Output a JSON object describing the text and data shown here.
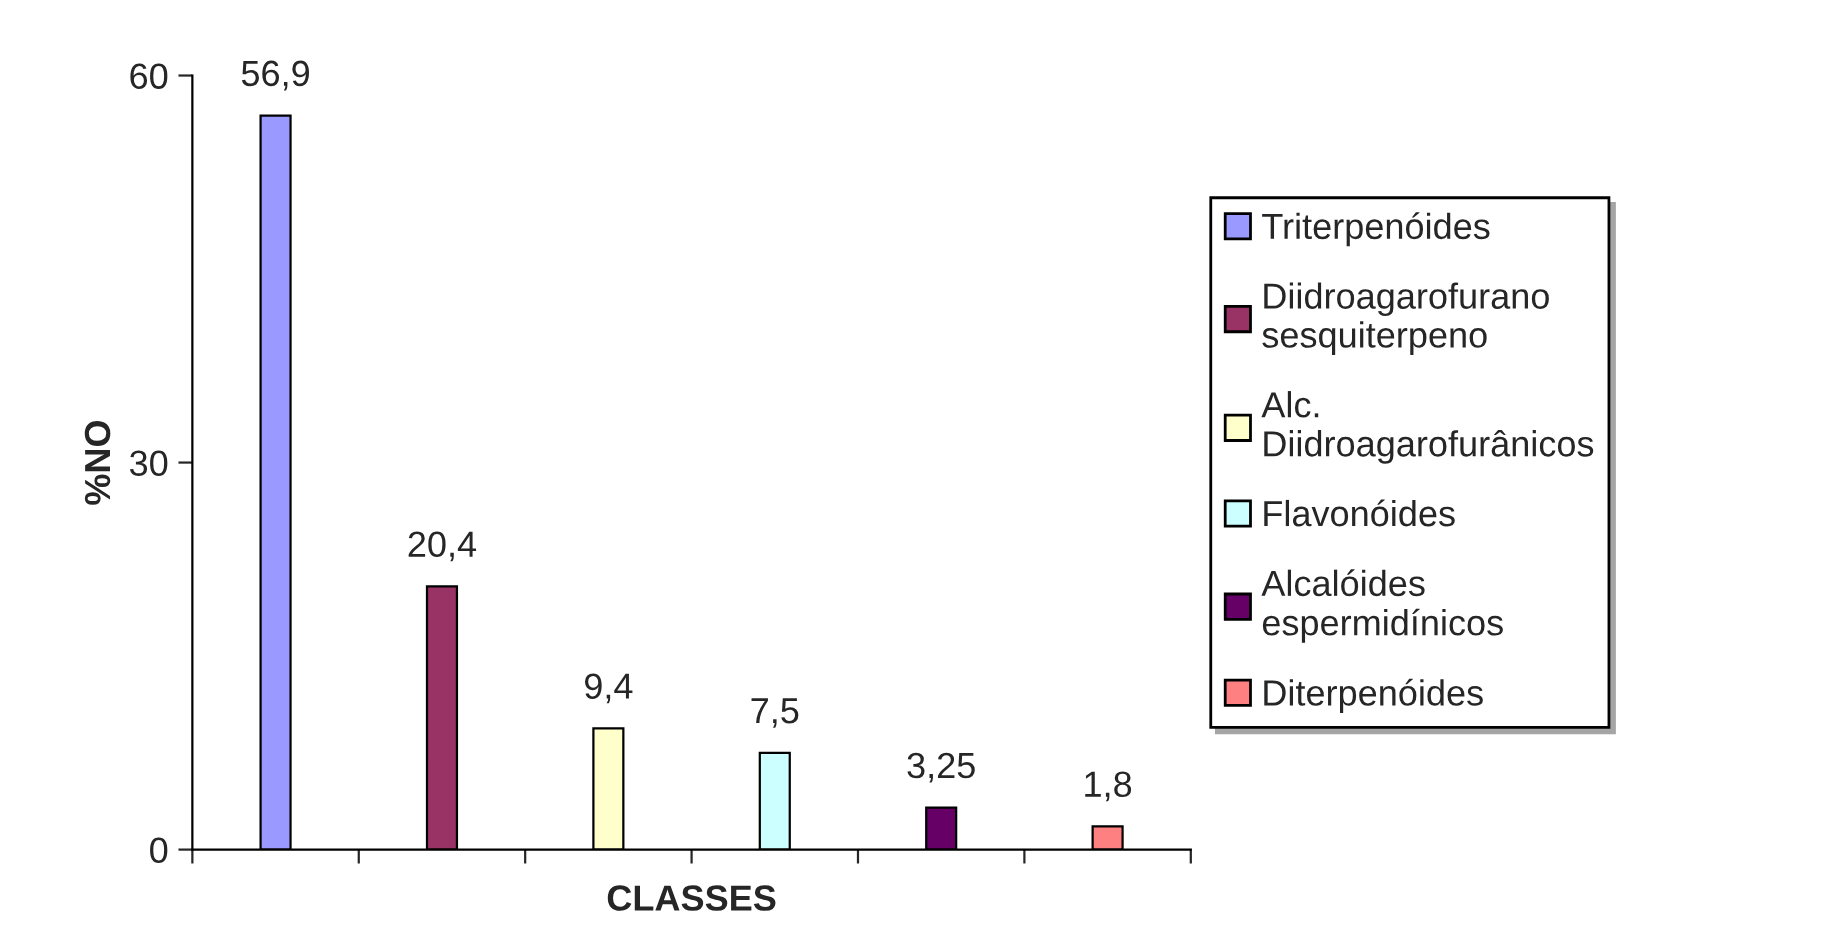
{
  "chart_data": {
    "type": "bar",
    "xlabel": "CLASSES",
    "ylabel": "%NO",
    "categories": [
      null,
      null,
      null,
      null,
      null,
      null
    ],
    "series": [
      {
        "name": "Triterpenóides",
        "color": "#9999ff",
        "values": [
          56.9,
          null,
          null,
          null,
          null,
          null
        ]
      },
      {
        "name": "Diidroagarofurano\nsesquiterpeno",
        "color": "#993366",
        "values": [
          null,
          20.4,
          null,
          null,
          null,
          null
        ]
      },
      {
        "name": "Alc.\nDiidroagarofurânicos",
        "color": "#ffffcc",
        "values": [
          null,
          null,
          9.4,
          null,
          null,
          null
        ]
      },
      {
        "name": "Flavonóides",
        "color": "#ccffff",
        "values": [
          null,
          null,
          null,
          7.5,
          null,
          null
        ]
      },
      {
        "name": "Alcalóides\nespermidínicos",
        "color": "#660066",
        "values": [
          null,
          null,
          null,
          null,
          3.25,
          null
        ]
      },
      {
        "name": "Diterpenóides",
        "color": "#ff8080",
        "values": [
          null,
          null,
          null,
          null,
          null,
          1.8
        ]
      }
    ],
    "value_labels": [
      "56,9",
      "20,4",
      "9,4",
      "7,5",
      "3,25",
      "1,8"
    ],
    "ylim": [
      0,
      60
    ],
    "yticks": [
      0,
      30,
      60
    ],
    "grid": false,
    "legend": "right"
  }
}
